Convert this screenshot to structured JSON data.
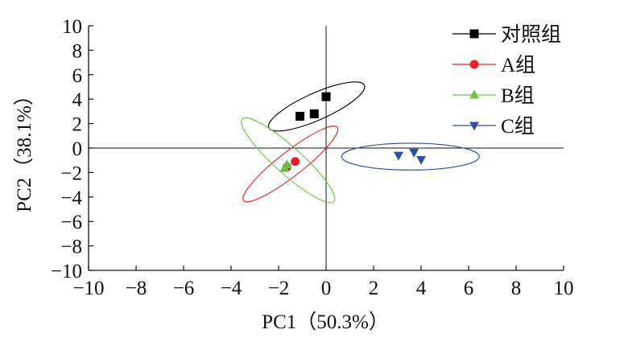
{
  "chart_data": {
    "type": "scatter",
    "xlabel": "PC1（50.3%）",
    "ylabel": "PC2（38.1%）",
    "xlim": [
      -10,
      10
    ],
    "ylim": [
      -10,
      10
    ],
    "x_ticks": [
      -10,
      -8,
      -6,
      -4,
      -2,
      0,
      2,
      4,
      6,
      8,
      10
    ],
    "y_ticks": [
      -10,
      -8,
      -6,
      -4,
      -2,
      0,
      2,
      4,
      6,
      8,
      10
    ],
    "x_tick_labels": [
      "−10",
      "−8",
      "−6",
      "−4",
      "−2",
      "0",
      "2",
      "4",
      "6",
      "8",
      "10"
    ],
    "y_tick_labels": [
      "−10",
      "−8",
      "−6",
      "−4",
      "−2",
      "0",
      "2",
      "4",
      "6",
      "8",
      "10"
    ],
    "grid": false,
    "zero_lines": true,
    "legend_position": "top-right",
    "series": [
      {
        "name": "对照组",
        "marker": "square",
        "color": "#000000",
        "points": [
          [
            -1.1,
            2.6
          ],
          [
            -0.5,
            2.8
          ],
          [
            0.0,
            4.2
          ]
        ],
        "ellipse": {
          "cx": -0.4,
          "cy": 3.4,
          "rx": 2.2,
          "ry": 1.1,
          "angle_deg": 24
        }
      },
      {
        "name": "A组",
        "marker": "circle",
        "color": "#e8202a",
        "points": [
          [
            -1.3,
            -1.1
          ],
          [
            -1.65,
            -1.55
          ]
        ],
        "ellipse": {
          "cx": -1.5,
          "cy": -1.3,
          "rx": 2.5,
          "ry": 1.0,
          "angle_deg": 38
        }
      },
      {
        "name": "B组",
        "marker": "triangle-up",
        "color": "#6cc04a",
        "points": [
          [
            -1.65,
            -1.35
          ],
          [
            -1.75,
            -1.65
          ]
        ],
        "ellipse": {
          "cx": -1.6,
          "cy": -1.0,
          "rx": 2.6,
          "ry": 1.1,
          "angle_deg": -42
        }
      },
      {
        "name": "C组",
        "marker": "triangle-down",
        "color": "#2e4fa2",
        "points": [
          [
            3.05,
            -0.6
          ],
          [
            3.7,
            -0.35
          ],
          [
            4.0,
            -0.95
          ]
        ],
        "ellipse": {
          "cx": 3.55,
          "cy": -0.7,
          "rx": 2.9,
          "ry": 1.1,
          "angle_deg": 0
        }
      }
    ]
  }
}
